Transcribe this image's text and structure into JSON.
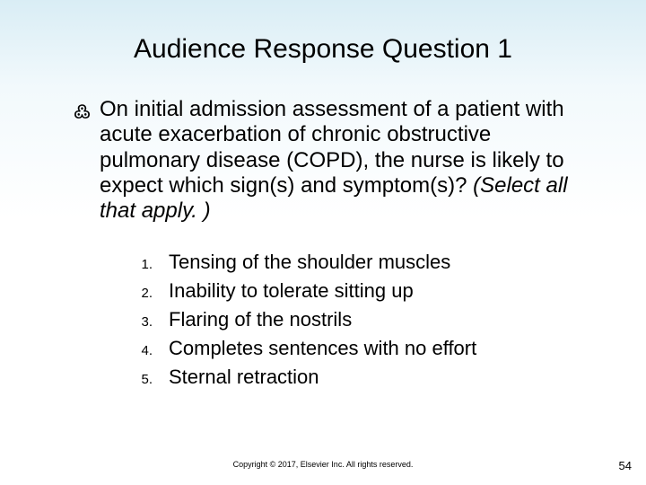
{
  "title": "Audience Response Question 1",
  "bullet_symbol": "་",
  "question": "On initial admission assessment of a patient with acute exacerbation of chronic obstructive pulmonary disease (COPD), the nurse is likely to expect which sign(s) and symptom(s)? ",
  "instruction": "(Select all that apply. )",
  "options": [
    {
      "num": "1.",
      "text": "Tensing of the shoulder muscles"
    },
    {
      "num": "2.",
      "text": "Inability to tolerate sitting up"
    },
    {
      "num": "3.",
      "text": "Flaring of the nostrils"
    },
    {
      "num": "4.",
      "text": "Completes sentences with no effort"
    },
    {
      "num": "5.",
      "text": "Sternal retraction"
    }
  ],
  "copyright": "Copyright © 2017, Elsevier Inc. All rights reserved.",
  "page_number": "54"
}
